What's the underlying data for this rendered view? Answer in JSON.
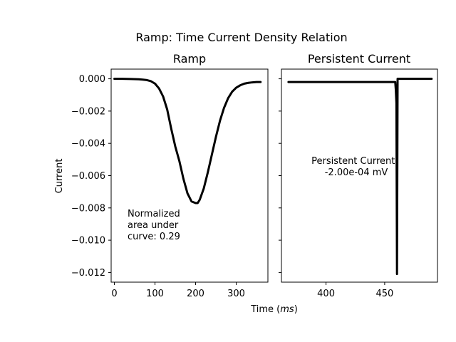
{
  "figure": {
    "suptitle": "Ramp: Time Current Density Relation",
    "xlabel_prefix": "Time (",
    "xlabel_unit": "ms",
    "xlabel_suffix": ")"
  },
  "chart_data": [
    {
      "type": "line",
      "title": "Ramp",
      "ylabel": "Current",
      "xlim": [
        -8,
        378
      ],
      "ylim": [
        -0.0126,
        0.0006
      ],
      "xticks": [
        0,
        100,
        200,
        300
      ],
      "yticks": [
        0.0,
        -0.002,
        -0.004,
        -0.006,
        -0.008,
        -0.01,
        -0.012
      ],
      "ytick_labels": [
        "0.000",
        "−0.002",
        "−0.004",
        "−0.006",
        "−0.008",
        "−0.010",
        "−0.012"
      ],
      "grid": false,
      "annotation": "Normalized\narea under\ncurve: 0.29",
      "annotation_color": "#0000ff",
      "line_color": "#000000",
      "series": [
        {
          "x": [
            0,
            20,
            40,
            60,
            70,
            80,
            90,
            100,
            110,
            120,
            130,
            140,
            150,
            160,
            170,
            180,
            190,
            200,
            205,
            210,
            220,
            230,
            240,
            250,
            260,
            270,
            280,
            290,
            300,
            310,
            320,
            330,
            340,
            350,
            360
          ],
          "y": [
            0.0,
            0.0,
            -1e-05,
            -3e-05,
            -5e-05,
            -8e-05,
            -0.00015,
            -0.0003,
            -0.0006,
            -0.0011,
            -0.0019,
            -0.0031,
            -0.0042,
            -0.0051,
            -0.0062,
            -0.0071,
            -0.0076,
            -0.0077,
            -0.0077,
            -0.0075,
            -0.0068,
            -0.0058,
            -0.0047,
            -0.0036,
            -0.0026,
            -0.0018,
            -0.0012,
            -0.0008,
            -0.00055,
            -0.0004,
            -0.0003,
            -0.00025,
            -0.00022,
            -0.0002,
            -0.0002
          ]
        }
      ]
    },
    {
      "type": "line",
      "title": "Persistent Current",
      "xlim": [
        362,
        495
      ],
      "ylim": [
        -0.0126,
        0.0006
      ],
      "xticks": [
        400,
        450
      ],
      "yticks_shared": true,
      "grid": false,
      "annotation": "Persistent Current:\n-2.00e-04 mV",
      "annotation_color": "#0000ff",
      "line_color": "#000000",
      "series": [
        {
          "x": [
            368,
            459,
            459.5,
            460,
            460.5,
            461,
            490
          ],
          "y": [
            -0.0002,
            -0.0002,
            -0.0007,
            -0.0015,
            -0.0121,
            0.0,
            0.0
          ]
        }
      ]
    }
  ]
}
